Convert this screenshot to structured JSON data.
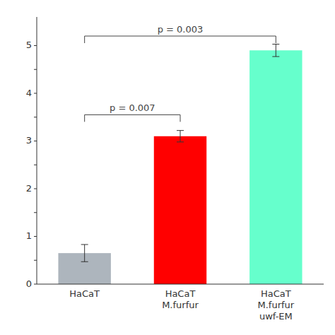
{
  "chart_data": {
    "type": "bar",
    "categories": [
      "HaCaT",
      "HaCaT\nM.furfur",
      "HaCaT\nM.furfur\nuwf-EM"
    ],
    "values": [
      0.65,
      3.1,
      4.9
    ],
    "errors": [
      0.18,
      0.12,
      0.13
    ],
    "colors": [
      "#adb5bd",
      "#ff0000",
      "#66ffcc"
    ],
    "ylim": [
      0,
      5.6
    ],
    "yticks": [
      0,
      {
        "value": 0.5,
        "label": null
      },
      1.0,
      {
        "value": 1.5,
        "label": null
      },
      2.0,
      {
        "value": 2.5,
        "label": null
      },
      3.0,
      {
        "value": 3.5,
        "label": null
      },
      4.0,
      {
        "value": 4.5,
        "label": null
      },
      5.0
    ],
    "grid": false,
    "annotations": [
      {
        "text": "p = 0.007",
        "between": [
          0,
          1
        ],
        "y": 3.55,
        "color": "#444444"
      },
      {
        "text": "p = 0.003",
        "between": [
          0,
          2
        ],
        "y": 5.2,
        "color": "#444444"
      }
    ]
  }
}
